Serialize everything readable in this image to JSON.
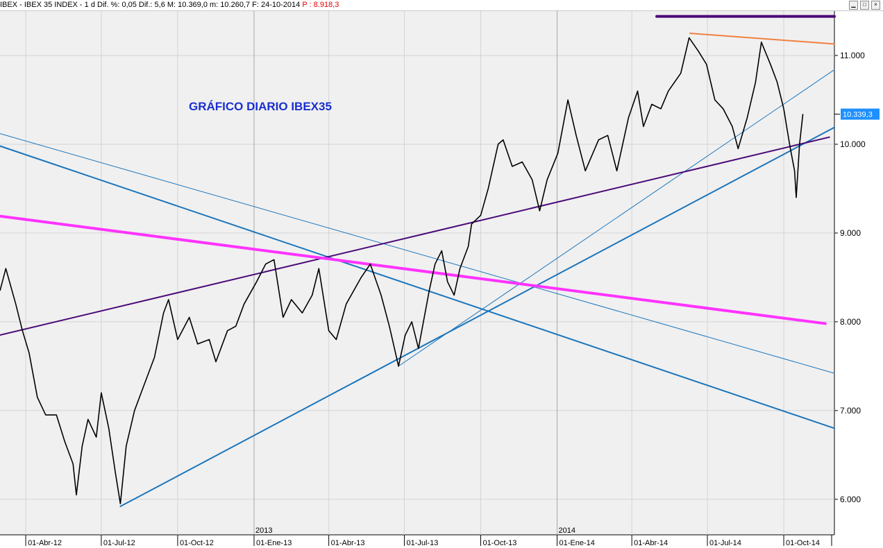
{
  "window": {
    "title_prefix": "IBEX - IBEX 35 INDEX - 1 d Dif. %: 0,05 Dif.: 5,6 M: 10.369,0 m: 10.260,7 F: 24-10-2014",
    "title_suffix": "P : 8.918,3",
    "buttons": {
      "minimize": "▁",
      "maximize": "□",
      "close": "×"
    }
  },
  "colors": {
    "price": "#000000",
    "steel_blue_line": "#1a75bc",
    "purple_line": "#4b0a78",
    "magenta_line": "#ff33ff",
    "orange_line": "#f08040",
    "last_price_box": "#1e90ff",
    "plot_background": "#f0f0f0"
  },
  "chart_data": {
    "type": "line",
    "title": "GRÁFICO DIARIO IBEX35",
    "ylim": [
      5600,
      11500
    ],
    "y_ticks": [
      6000,
      7000,
      8000,
      9000,
      10000,
      11000
    ],
    "y_tick_labels": [
      "6.000",
      "7.000",
      "8.000",
      "9.000",
      "10.000",
      "11.000"
    ],
    "x_range": [
      "2012-03-01",
      "2014-12-01"
    ],
    "x_ticks": [
      "2012-04-01",
      "2012-07-01",
      "2012-10-01",
      "2013-01-01",
      "2013-04-01",
      "2013-07-01",
      "2013-10-01",
      "2014-01-01",
      "2014-04-01",
      "2014-07-01",
      "2014-10-01"
    ],
    "x_tick_labels": [
      "01-Abr-12",
      "01-Jul-12",
      "01-Oct-12",
      "01-Ene-13",
      "01-Abr-13",
      "01-Jul-13",
      "01-Oct-13",
      "01-Ene-14",
      "01-Abr-14",
      "01-Jul-14",
      "01-Oct-14"
    ],
    "year_labels": [
      {
        "x": "2013-01-01",
        "label": "2013"
      },
      {
        "x": "2014-01-01",
        "label": "2014"
      }
    ],
    "grid": true,
    "last_price": 10339.3,
    "last_price_label": "10.339,3",
    "series": [
      {
        "values": [
          [
            "2012-03-01",
            8350
          ],
          [
            "2012-03-08",
            8600
          ],
          [
            "2012-03-20",
            8200
          ],
          [
            "2012-03-28",
            7900
          ],
          [
            "2012-04-05",
            7650
          ],
          [
            "2012-04-15",
            7150
          ],
          [
            "2012-04-25",
            6950
          ],
          [
            "2012-05-08",
            6950
          ],
          [
            "2012-05-18",
            6650
          ],
          [
            "2012-05-28",
            6400
          ],
          [
            "2012-06-01",
            6050
          ],
          [
            "2012-06-08",
            6600
          ],
          [
            "2012-06-15",
            6900
          ],
          [
            "2012-06-25",
            6700
          ],
          [
            "2012-07-01",
            7200
          ],
          [
            "2012-07-10",
            6800
          ],
          [
            "2012-07-18",
            6300
          ],
          [
            "2012-07-24",
            5950
          ],
          [
            "2012-07-31",
            6600
          ],
          [
            "2012-08-10",
            7000
          ],
          [
            "2012-08-22",
            7300
          ],
          [
            "2012-09-03",
            7600
          ],
          [
            "2012-09-14",
            8100
          ],
          [
            "2012-09-20",
            8250
          ],
          [
            "2012-10-01",
            7800
          ],
          [
            "2012-10-15",
            8050
          ],
          [
            "2012-10-25",
            7750
          ],
          [
            "2012-11-08",
            7800
          ],
          [
            "2012-11-16",
            7550
          ],
          [
            "2012-11-30",
            7900
          ],
          [
            "2012-12-10",
            7950
          ],
          [
            "2012-12-20",
            8200
          ],
          [
            "2013-01-04",
            8450
          ],
          [
            "2013-01-15",
            8650
          ],
          [
            "2013-01-25",
            8700
          ],
          [
            "2013-02-05",
            8050
          ],
          [
            "2013-02-15",
            8250
          ],
          [
            "2013-02-28",
            8100
          ],
          [
            "2013-03-12",
            8300
          ],
          [
            "2013-03-20",
            8600
          ],
          [
            "2013-04-01",
            7900
          ],
          [
            "2013-04-10",
            7800
          ],
          [
            "2013-04-22",
            8200
          ],
          [
            "2013-05-10",
            8500
          ],
          [
            "2013-05-21",
            8650
          ],
          [
            "2013-06-03",
            8300
          ],
          [
            "2013-06-13",
            7950
          ],
          [
            "2013-06-24",
            7500
          ],
          [
            "2013-07-02",
            7850
          ],
          [
            "2013-07-10",
            8000
          ],
          [
            "2013-07-18",
            7700
          ],
          [
            "2013-07-31",
            8350
          ],
          [
            "2013-08-07",
            8650
          ],
          [
            "2013-08-15",
            8800
          ],
          [
            "2013-08-22",
            8450
          ],
          [
            "2013-08-30",
            8300
          ],
          [
            "2013-09-06",
            8600
          ],
          [
            "2013-09-16",
            8850
          ],
          [
            "2013-09-20",
            9100
          ],
          [
            "2013-10-01",
            9200
          ],
          [
            "2013-10-10",
            9500
          ],
          [
            "2013-10-22",
            10000
          ],
          [
            "2013-10-28",
            10050
          ],
          [
            "2013-11-08",
            9750
          ],
          [
            "2013-11-20",
            9800
          ],
          [
            "2013-12-02",
            9600
          ],
          [
            "2013-12-11",
            9250
          ],
          [
            "2013-12-20",
            9600
          ],
          [
            "2014-01-02",
            9900
          ],
          [
            "2014-01-14",
            10500
          ],
          [
            "2014-01-24",
            10100
          ],
          [
            "2014-02-04",
            9700
          ],
          [
            "2014-02-20",
            10050
          ],
          [
            "2014-03-03",
            10100
          ],
          [
            "2014-03-14",
            9700
          ],
          [
            "2014-03-28",
            10300
          ],
          [
            "2014-04-08",
            10600
          ],
          [
            "2014-04-15",
            10200
          ],
          [
            "2014-04-25",
            10450
          ],
          [
            "2014-05-06",
            10400
          ],
          [
            "2014-05-15",
            10600
          ],
          [
            "2014-05-30",
            10800
          ],
          [
            "2014-06-09",
            11200
          ],
          [
            "2014-06-20",
            11050
          ],
          [
            "2014-06-30",
            10900
          ],
          [
            "2014-07-10",
            10500
          ],
          [
            "2014-07-20",
            10400
          ],
          [
            "2014-07-31",
            10200
          ],
          [
            "2014-08-07",
            9950
          ],
          [
            "2014-08-18",
            10300
          ],
          [
            "2014-08-28",
            10700
          ],
          [
            "2014-09-04",
            11150
          ],
          [
            "2014-09-15",
            10900
          ],
          [
            "2014-09-23",
            10700
          ],
          [
            "2014-10-01",
            10400
          ],
          [
            "2014-10-08",
            10000
          ],
          [
            "2014-10-14",
            9700
          ],
          [
            "2014-10-16",
            9400
          ],
          [
            "2014-10-20",
            10000
          ],
          [
            "2014-10-24",
            10340
          ]
        ]
      }
    ],
    "trendlines": [
      {
        "color_key": "steel_blue_line",
        "width": 2,
        "from": [
          "2012-03-01",
          9980
        ],
        "to": [
          "2014-12-01",
          6800
        ]
      },
      {
        "color_key": "steel_blue_line",
        "width": 1,
        "from": [
          "2012-03-01",
          10120
        ],
        "to": [
          "2014-12-01",
          7420
        ]
      },
      {
        "color_key": "steel_blue_line",
        "width": 2,
        "from": [
          "2012-07-24",
          5920
        ],
        "to": [
          "2014-12-01",
          10190
        ]
      },
      {
        "color_key": "steel_blue_line",
        "width": 1,
        "from": [
          "2013-06-24",
          7500
        ],
        "to": [
          "2014-12-01",
          10840
        ]
      },
      {
        "color_key": "purple_line",
        "width": 2,
        "from": [
          "2012-03-01",
          7850
        ],
        "to": [
          "2014-11-25",
          10080
        ]
      },
      {
        "color_key": "magenta_line",
        "width": 4,
        "from": [
          "2012-03-01",
          9190
        ],
        "to": [
          "2014-11-20",
          7980
        ]
      },
      {
        "color_key": "orange_line",
        "width": 2,
        "from": [
          "2014-06-10",
          11250
        ],
        "to": [
          "2014-12-01",
          11130
        ]
      },
      {
        "color_key": "purple_line",
        "width": 4,
        "from": [
          "2014-05-01",
          11440
        ],
        "to": [
          "2014-12-01",
          11440
        ]
      }
    ]
  }
}
